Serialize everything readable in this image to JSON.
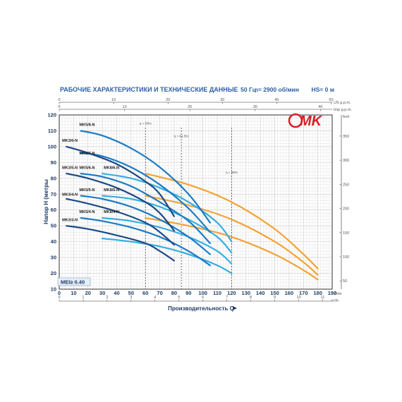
{
  "header": {
    "title": "РАБОЧИЕ ХАРАКТЕРИСТИКИ И ТЕХНИЧЕСКИЕ ДАННЫЕ",
    "freq": "50 Гц",
    "speed": "n= 2900 об/мин",
    "hs": "HS= 0 м"
  },
  "logo": {
    "text": "MK",
    "color": "#d71f26"
  },
  "badge": {
    "text": "MEI≥ 0.40"
  },
  "colors": {
    "dark": "#1d4a86",
    "medium": "#1c7bc4",
    "light": "#36aee0",
    "orange": "#f4a236",
    "grid": "#c9c9c9",
    "frame": "#333333"
  },
  "chart_data": {
    "type": "line",
    "xlabel": "Производительность Q",
    "ylabel": "Напор H (метры",
    "xlim": [
      0,
      190
    ],
    "ylim": [
      10,
      120
    ],
    "x_unit": "l/min",
    "x_ticks": [
      0,
      10,
      20,
      30,
      40,
      50,
      60,
      70,
      80,
      90,
      100,
      110,
      120,
      130,
      140,
      150,
      160,
      170,
      180,
      190
    ],
    "y_ticks": [
      10,
      20,
      30,
      40,
      50,
      60,
      70,
      80,
      90,
      100,
      110,
      120
    ],
    "secondary_axes": {
      "bottom_m3h": {
        "unit": "m³/h",
        "ticks": [
          0,
          1,
          2,
          3,
          4,
          5,
          6,
          7,
          8,
          9,
          10,
          11
        ]
      },
      "top_us_gpm": {
        "unit": "US g.p.m.",
        "ticks": [
          0,
          10,
          20,
          30,
          40,
          50
        ]
      },
      "top_imp_gpm": {
        "unit": "Imp g.p.m.",
        "ticks": [
          0,
          10,
          20,
          30,
          40
        ]
      },
      "right_feet": {
        "unit": "feet",
        "ticks": [
          50,
          100,
          150,
          200,
          250,
          300,
          350
        ]
      }
    },
    "efficiency_markers": [
      {
        "label": "η = 53%",
        "q": 60
      },
      {
        "label": "η = 61.5%",
        "q": 85
      },
      {
        "label": "η = 65%",
        "q": 120
      }
    ],
    "series": [
      {
        "name": "MK3/6-N",
        "group": "dark",
        "label_q": 2,
        "label_h": 103,
        "points": [
          [
            5,
            100
          ],
          [
            20,
            96
          ],
          [
            40,
            89
          ],
          [
            60,
            78
          ],
          [
            70,
            70
          ],
          [
            80,
            56
          ]
        ]
      },
      {
        "name": "MK3/5-N",
        "group": "dark",
        "label_q": 2,
        "label_h": 86,
        "points": [
          [
            5,
            83
          ],
          [
            20,
            80
          ],
          [
            40,
            74
          ],
          [
            60,
            65
          ],
          [
            70,
            58
          ],
          [
            80,
            47
          ]
        ]
      },
      {
        "name": "MK3/4-N",
        "group": "dark",
        "label_q": 2,
        "label_h": 69,
        "points": [
          [
            5,
            67
          ],
          [
            20,
            64
          ],
          [
            40,
            59
          ],
          [
            60,
            52
          ],
          [
            70,
            46
          ],
          [
            80,
            38
          ]
        ]
      },
      {
        "name": "MK3/3-N",
        "group": "dark",
        "label_q": 2,
        "label_h": 53,
        "points": [
          [
            5,
            50
          ],
          [
            20,
            48
          ],
          [
            40,
            44
          ],
          [
            60,
            39
          ],
          [
            70,
            34
          ],
          [
            80,
            28
          ]
        ]
      },
      {
        "name": "MK5/8-N",
        "group": "medium",
        "label_q": 14,
        "label_h": 113,
        "points": [
          [
            15,
            110
          ],
          [
            30,
            107
          ],
          [
            50,
            99
          ],
          [
            70,
            87
          ],
          [
            90,
            70
          ],
          [
            105,
            52
          ]
        ]
      },
      {
        "name": "MK5/7-N",
        "group": "medium",
        "label_q": 14,
        "label_h": 95,
        "points": [
          [
            15,
            96
          ],
          [
            30,
            94
          ],
          [
            50,
            87
          ],
          [
            70,
            76
          ],
          [
            90,
            61
          ],
          [
            105,
            46
          ]
        ]
      },
      {
        "name": "MK5/6-N",
        "group": "medium",
        "label_q": 14,
        "label_h": 86,
        "points": [
          [
            15,
            83
          ],
          [
            30,
            81
          ],
          [
            50,
            75
          ],
          [
            70,
            65
          ],
          [
            90,
            53
          ],
          [
            105,
            39
          ]
        ]
      },
      {
        "name": "MK5/5-N",
        "group": "medium",
        "label_q": 14,
        "label_h": 72,
        "points": [
          [
            15,
            69
          ],
          [
            30,
            67
          ],
          [
            50,
            62
          ],
          [
            70,
            54
          ],
          [
            90,
            43
          ],
          [
            105,
            32
          ]
        ]
      },
      {
        "name": "MK5/4-N",
        "group": "medium",
        "label_q": 14,
        "label_h": 58,
        "points": [
          [
            15,
            55
          ],
          [
            30,
            53
          ],
          [
            50,
            49
          ],
          [
            70,
            43
          ],
          [
            90,
            34
          ],
          [
            105,
            25
          ]
        ]
      },
      {
        "name": "MK8/6-N",
        "group": "light",
        "label_q": 31,
        "label_h": 86,
        "points": [
          [
            30,
            83
          ],
          [
            50,
            80
          ],
          [
            70,
            74
          ],
          [
            90,
            65
          ],
          [
            110,
            52
          ],
          [
            120,
            40
          ]
        ]
      },
      {
        "name": "MK8/5-N",
        "group": "light",
        "label_q": 31,
        "label_h": 72,
        "points": [
          [
            30,
            69
          ],
          [
            50,
            67
          ],
          [
            70,
            62
          ],
          [
            90,
            54
          ],
          [
            110,
            43
          ],
          [
            120,
            33
          ]
        ]
      },
      {
        "name": "MK8/4-N",
        "group": "light",
        "label_q": 31,
        "label_h": 58,
        "points": [
          [
            30,
            55
          ],
          [
            50,
            53
          ],
          [
            70,
            49
          ],
          [
            90,
            43
          ],
          [
            110,
            34
          ],
          [
            120,
            26
          ]
        ]
      },
      {
        "name": "",
        "group": "light",
        "label_q": null,
        "label_h": null,
        "points": [
          [
            30,
            42
          ],
          [
            50,
            40
          ],
          [
            70,
            37
          ],
          [
            90,
            32
          ],
          [
            110,
            25
          ],
          [
            120,
            20
          ]
        ]
      },
      {
        "name": "",
        "group": "orange",
        "label_q": null,
        "label_h": null,
        "points": [
          [
            60,
            83
          ],
          [
            90,
            76
          ],
          [
            120,
            65
          ],
          [
            150,
            48
          ],
          [
            170,
            32
          ],
          [
            180,
            23
          ]
        ]
      },
      {
        "name": "",
        "group": "orange",
        "label_q": null,
        "label_h": null,
        "points": [
          [
            60,
            69
          ],
          [
            90,
            63
          ],
          [
            120,
            54
          ],
          [
            150,
            40
          ],
          [
            170,
            27
          ],
          [
            180,
            19
          ]
        ]
      },
      {
        "name": "",
        "group": "orange",
        "label_q": null,
        "label_h": null,
        "points": [
          [
            60,
            55
          ],
          [
            90,
            50
          ],
          [
            120,
            43
          ],
          [
            150,
            32
          ],
          [
            170,
            22
          ],
          [
            180,
            16
          ]
        ]
      }
    ]
  }
}
